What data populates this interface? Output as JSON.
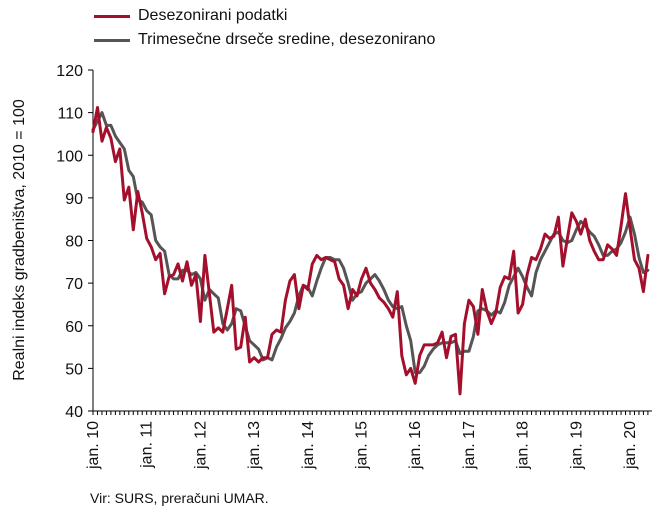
{
  "chart_data": {
    "type": "line",
    "ylabel": "Realni indeks gradbeništva, 2010 = 100",
    "xlabel": "",
    "ylim": [
      40,
      120
    ],
    "yticks": [
      40,
      50,
      60,
      70,
      80,
      90,
      100,
      110,
      120
    ],
    "xtick_labels": [
      "jan. 10",
      "jan. 11",
      "jan. 12",
      "jan. 13",
      "jan. 14",
      "jan. 15",
      "jan. 16",
      "jan. 17",
      "jan. 18",
      "jan. 19",
      "jan. 20"
    ],
    "grid": false,
    "legend_position": "top-left",
    "x_start": "2010-01",
    "series": [
      {
        "name": "Desezonirani podatki",
        "color": "#a4102c",
        "values": [
          105.5,
          111.2,
          103.3,
          106.5,
          104,
          98.5,
          101.5,
          89.5,
          92.5,
          82.5,
          91.5,
          86.5,
          80.5,
          78.5,
          75.5,
          77,
          67.5,
          71.5,
          72,
          74.5,
          70.5,
          75,
          69.5,
          72,
          61,
          76.5,
          67.5,
          58.5,
          59.5,
          58.5,
          64,
          69.5,
          54.5,
          55,
          62,
          51.5,
          52.5,
          51.5,
          52.5,
          52.5,
          58,
          59,
          58.5,
          66,
          70.5,
          72,
          64,
          69.5,
          68.5,
          74.5,
          76.5,
          75.5,
          76,
          75.5,
          75,
          71,
          69.5,
          64,
          68.5,
          67,
          71,
          73.5,
          70,
          68.5,
          66.5,
          65.5,
          64,
          62,
          68,
          53,
          48.5,
          50,
          46.5,
          53,
          55.5,
          55.5,
          55.5,
          56,
          58.5,
          52.5,
          57.5,
          58,
          44,
          60.5,
          66,
          64.5,
          58,
          68.5,
          63.5,
          60.5,
          63,
          69,
          71.5,
          71,
          77.5,
          63,
          65,
          72,
          76,
          75.5,
          78,
          81.5,
          80.5,
          81,
          85.5,
          74,
          80.5,
          86.5,
          84.5,
          81.5,
          85,
          80,
          77.5,
          75.5,
          75.5,
          79,
          78,
          76.5,
          83.5,
          91,
          83,
          75.5,
          73.5,
          68,
          76.5
        ]
      },
      {
        "name": "Trimesečne drseče sredine, desezonirano",
        "color": "#555555",
        "values": [
          106,
          108,
          110,
          107,
          107,
          104.5,
          103,
          101.5,
          96.5,
          95,
          89.5,
          89,
          87,
          86,
          80,
          78.5,
          77.5,
          72,
          71,
          71,
          73,
          73,
          72,
          72.5,
          71,
          66,
          68.5,
          67.5,
          66.5,
          60.5,
          59,
          60.5,
          64,
          63.5,
          60,
          56.5,
          55.5,
          54.5,
          52,
          52.5,
          52,
          55,
          57,
          59.5,
          61,
          63,
          67,
          69.5,
          69,
          67,
          70.5,
          73.5,
          76,
          76,
          75.5,
          75.5,
          73.5,
          70,
          66,
          67.5,
          68,
          70,
          71,
          72,
          70.5,
          68.5,
          66,
          64.5,
          64,
          64.5,
          60,
          56.5,
          49,
          49,
          50.5,
          53,
          54.5,
          55.5,
          56,
          56,
          56,
          56.5,
          53.5,
          54,
          54,
          57.5,
          63.5,
          64,
          63.5,
          62.5,
          63.5,
          63,
          65.5,
          69.5,
          71.5,
          73.5,
          71.5,
          69,
          67,
          72.5,
          75.5,
          77.5,
          79.5,
          81.5,
          82,
          80,
          79.5,
          80,
          82.5,
          84.5,
          83.5,
          82,
          81,
          79,
          76.5,
          76.5,
          77.5,
          78,
          79.5,
          82,
          85.5,
          81.5,
          76,
          72.5,
          73
        ]
      }
    ]
  },
  "source": "Vir: SURS, preračuni UMAR."
}
